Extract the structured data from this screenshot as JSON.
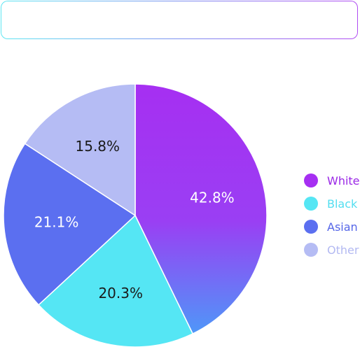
{
  "chart_data": {
    "type": "pie",
    "title": "",
    "categories": [
      "White",
      "Black",
      "Asian",
      "Other"
    ],
    "values": [
      42.8,
      20.3,
      21.1,
      15.8
    ],
    "value_labels": [
      "42.8%",
      "20.3%",
      "21.1%",
      "15.8%"
    ],
    "colors": [
      "#a62ff2",
      "#55e6f4",
      "#5b6ff0",
      "#b5bcf4"
    ],
    "label_colors": [
      "#ffffff",
      "#1a1a1a",
      "#ffffff",
      "#1a1a1a"
    ],
    "legend_text_colors": [
      "#9a27e6",
      "#52def0",
      "#5566e8",
      "#b3b9f2"
    ],
    "legend_position": "right"
  }
}
